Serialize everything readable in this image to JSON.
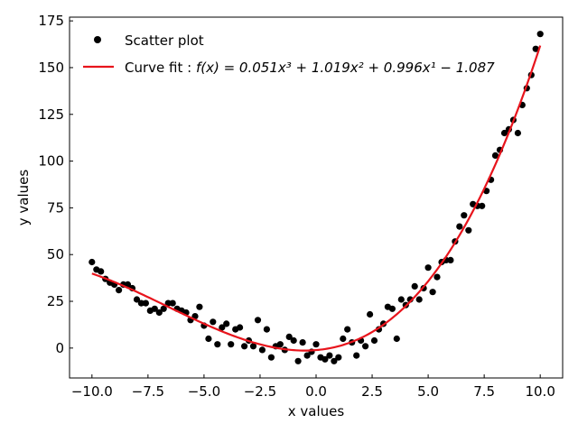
{
  "chart_data": {
    "type": "scatter",
    "title": "",
    "xlabel": "x values",
    "ylabel": "y values",
    "xlim": [
      -11.0,
      11.0
    ],
    "ylim": [
      -16,
      177
    ],
    "xticks": [
      -10,
      -7.5,
      -5,
      -2.5,
      0,
      2.5,
      5,
      7.5,
      10
    ],
    "xtick_labels": [
      "−10.0",
      "−7.5",
      "−5.0",
      "−2.5",
      "0.0",
      "2.5",
      "5.0",
      "7.5",
      "10.0"
    ],
    "yticks": [
      0,
      25,
      50,
      75,
      100,
      125,
      150,
      175
    ],
    "ytick_labels": [
      "0",
      "25",
      "50",
      "75",
      "100",
      "125",
      "150",
      "175"
    ],
    "grid": false,
    "legend_placement": "top-left",
    "legend": {
      "scatter_label": "Scatter plot",
      "fit_prefix": "Curve fit : ",
      "fit_formula": "f(x) = 0.051x³ + 1.019x² + 0.996x¹ − 1.087"
    },
    "fit": {
      "coefficients": [
        0.051,
        1.019,
        0.996,
        -1.087
      ],
      "x_range": [
        -10,
        10
      ]
    },
    "colors": {
      "points": "#000000",
      "fit_line": "#e8141c"
    },
    "series": [
      {
        "name": "Scatter plot",
        "x": [
          -10.0,
          -9.8,
          -9.6,
          -9.4,
          -9.2,
          -9.0,
          -8.8,
          -8.6,
          -8.4,
          -8.2,
          -8.0,
          -7.8,
          -7.6,
          -7.4,
          -7.2,
          -7.0,
          -6.8,
          -6.6,
          -6.4,
          -6.2,
          -6.0,
          -5.8,
          -5.6,
          -5.4,
          -5.2,
          -5.0,
          -4.8,
          -4.6,
          -4.4,
          -4.2,
          -4.0,
          -3.8,
          -3.6,
          -3.4,
          -3.2,
          -3.0,
          -2.8,
          -2.6,
          -2.4,
          -2.2,
          -2.0,
          -1.8,
          -1.6,
          -1.4,
          -1.2,
          -1.0,
          -0.8,
          -0.6,
          -0.4,
          -0.2,
          0.0,
          0.2,
          0.4,
          0.6,
          0.8,
          1.0,
          1.2,
          1.4,
          1.6,
          1.8,
          2.0,
          2.2,
          2.4,
          2.6,
          2.8,
          3.0,
          3.2,
          3.4,
          3.6,
          3.8,
          4.0,
          4.2,
          4.4,
          4.6,
          4.8,
          5.0,
          5.2,
          5.4,
          5.6,
          5.8,
          6.0,
          6.2,
          6.4,
          6.6,
          6.8,
          7.0,
          7.2,
          7.4,
          7.6,
          7.8,
          8.0,
          8.2,
          8.4,
          8.6,
          8.8,
          9.0,
          9.2,
          9.4,
          9.6,
          9.8,
          10.0
        ],
        "y": [
          46,
          42,
          41,
          37,
          35,
          34,
          31,
          34,
          34,
          32,
          26,
          24,
          24,
          20,
          21,
          19,
          21,
          24,
          24,
          21,
          20,
          19,
          15,
          17,
          22,
          12,
          5,
          14,
          2,
          11,
          13,
          2,
          10,
          11,
          1,
          4,
          1,
          15,
          -1,
          10,
          -5,
          1,
          2,
          -1,
          6,
          4,
          -7,
          3,
          -4,
          -2,
          2,
          -5,
          -6,
          -4,
          -7,
          -5,
          5,
          10,
          3,
          -4,
          4,
          1,
          18,
          4,
          10,
          13,
          22,
          21,
          5,
          26,
          23,
          26,
          33,
          26,
          32,
          43,
          30,
          38,
          46,
          47,
          47,
          57,
          65,
          71,
          63,
          77,
          76,
          76,
          84,
          90,
          103,
          106,
          115,
          117,
          122,
          115,
          130,
          139,
          146,
          160,
          168
        ]
      }
    ]
  }
}
